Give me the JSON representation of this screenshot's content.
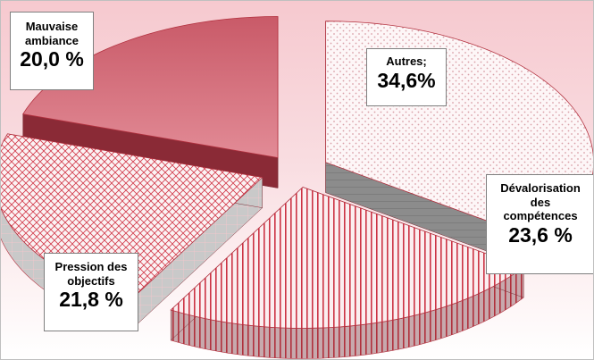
{
  "chart_data": {
    "type": "pie",
    "style": "3d-exploded",
    "slices": [
      {
        "name": "Autres;",
        "value": 34.6,
        "value_label": "34,6%",
        "pattern": "dots",
        "top_color": "#d9a0a8",
        "side_color": "#8c8c8c"
      },
      {
        "name": "Dévalorisation des compétences",
        "name_lines": [
          "Dévalorisation",
          "des",
          "compétences"
        ],
        "value": 23.6,
        "value_label": "23,6 %",
        "pattern": "vertical",
        "top_color": "#cc3344",
        "side_color": "#b0303c"
      },
      {
        "name": "Pression des objectifs",
        "name_lines": [
          "Pression des",
          "objectifs"
        ],
        "value": 21.8,
        "value_label": "21,8 %",
        "pattern": "grid",
        "top_color": "#d23a4a",
        "side_color": "#9a9a9a"
      },
      {
        "name": "Mauvaise ambiance",
        "name_lines": [
          "Mauvaise",
          "ambiance"
        ],
        "value": 20.0,
        "value_label": "20,0 %",
        "pattern": "solid",
        "top_color": "#d9707d",
        "side_color": "#8a2a36"
      }
    ],
    "background": "light pink gradient",
    "legend": "none, data labels beside slices"
  }
}
